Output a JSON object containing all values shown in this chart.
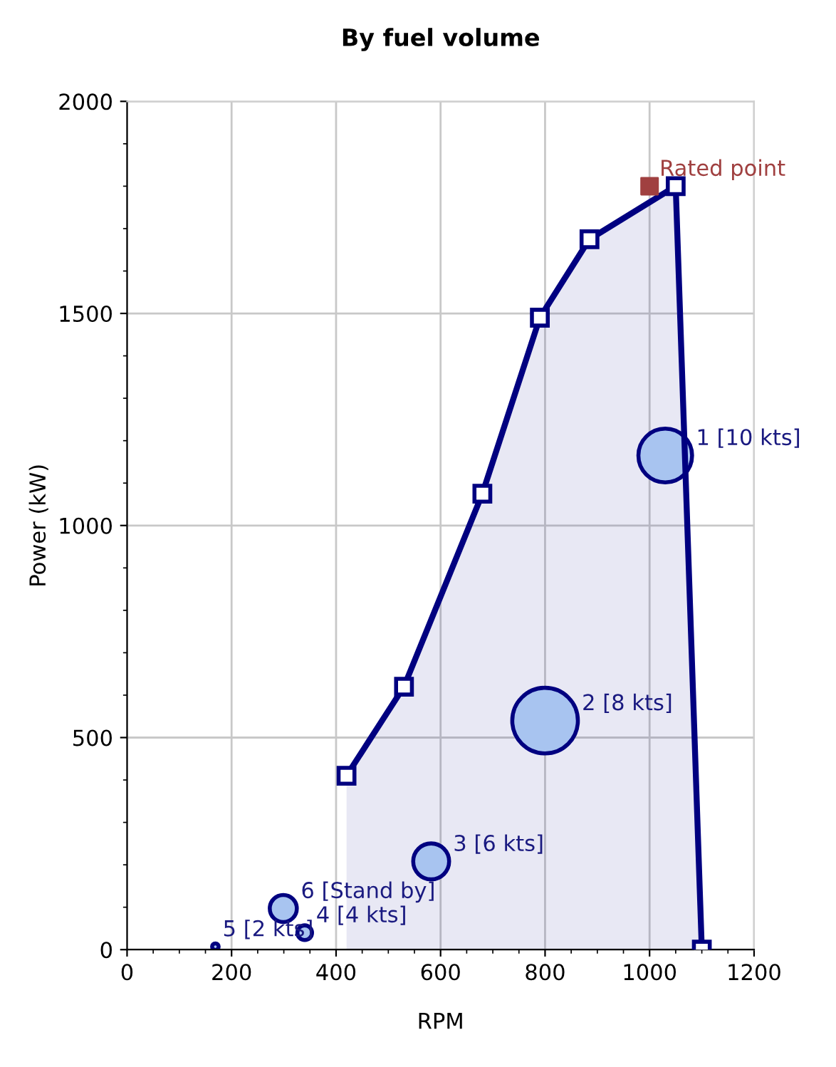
{
  "chart_data": {
    "type": "bubble",
    "title": "By fuel volume",
    "xlabel": "RPM",
    "ylabel": "Power (kW)",
    "xlim": [
      0,
      1200
    ],
    "xticks": [
      0,
      200,
      400,
      600,
      800,
      1000,
      1200
    ],
    "ylim": [
      0,
      2000
    ],
    "yticks": [
      0,
      500,
      1000,
      1500,
      2000
    ],
    "grid": true,
    "series": [
      {
        "type": "area",
        "color": "#000080",
        "marker": "square",
        "line_style": "solid",
        "x": [
          420,
          530,
          680,
          790,
          885,
          1050,
          1100
        ],
        "values": [
          410,
          620,
          1075,
          1490,
          1675,
          1800,
          0
        ]
      },
      {
        "type": "scatter",
        "color": "#a04040",
        "marker": "square",
        "x": [
          1000
        ],
        "values": [
          1800
        ]
      },
      {
        "color": "#a8c4f0",
        "x": [
          1030,
          800,
          582,
          340,
          169,
          299
        ],
        "values": [
          1165,
          540,
          208,
          40,
          7,
          97
        ],
        "sizes": [
          0.67,
          1,
          0.3,
          0.05,
          0.01,
          0.17
        ]
      }
    ],
    "annotations": [
      {
        "text": "Rated point",
        "x": 1000,
        "y": 1800
      },
      {
        "text": "1 [10 kts]",
        "x": 1030,
        "y": 1165
      },
      {
        "text": "2 [8 kts]",
        "x": 800,
        "y": 540
      },
      {
        "text": "3 [6 kts]",
        "x": 582,
        "y": 208
      },
      {
        "text": "4 [4 kts]",
        "x": 340,
        "y": 40
      },
      {
        "text": "5 [2 kts]",
        "x": 169,
        "y": 7
      },
      {
        "text": "6 [Stand by]",
        "x": 299,
        "y": 97
      }
    ]
  }
}
